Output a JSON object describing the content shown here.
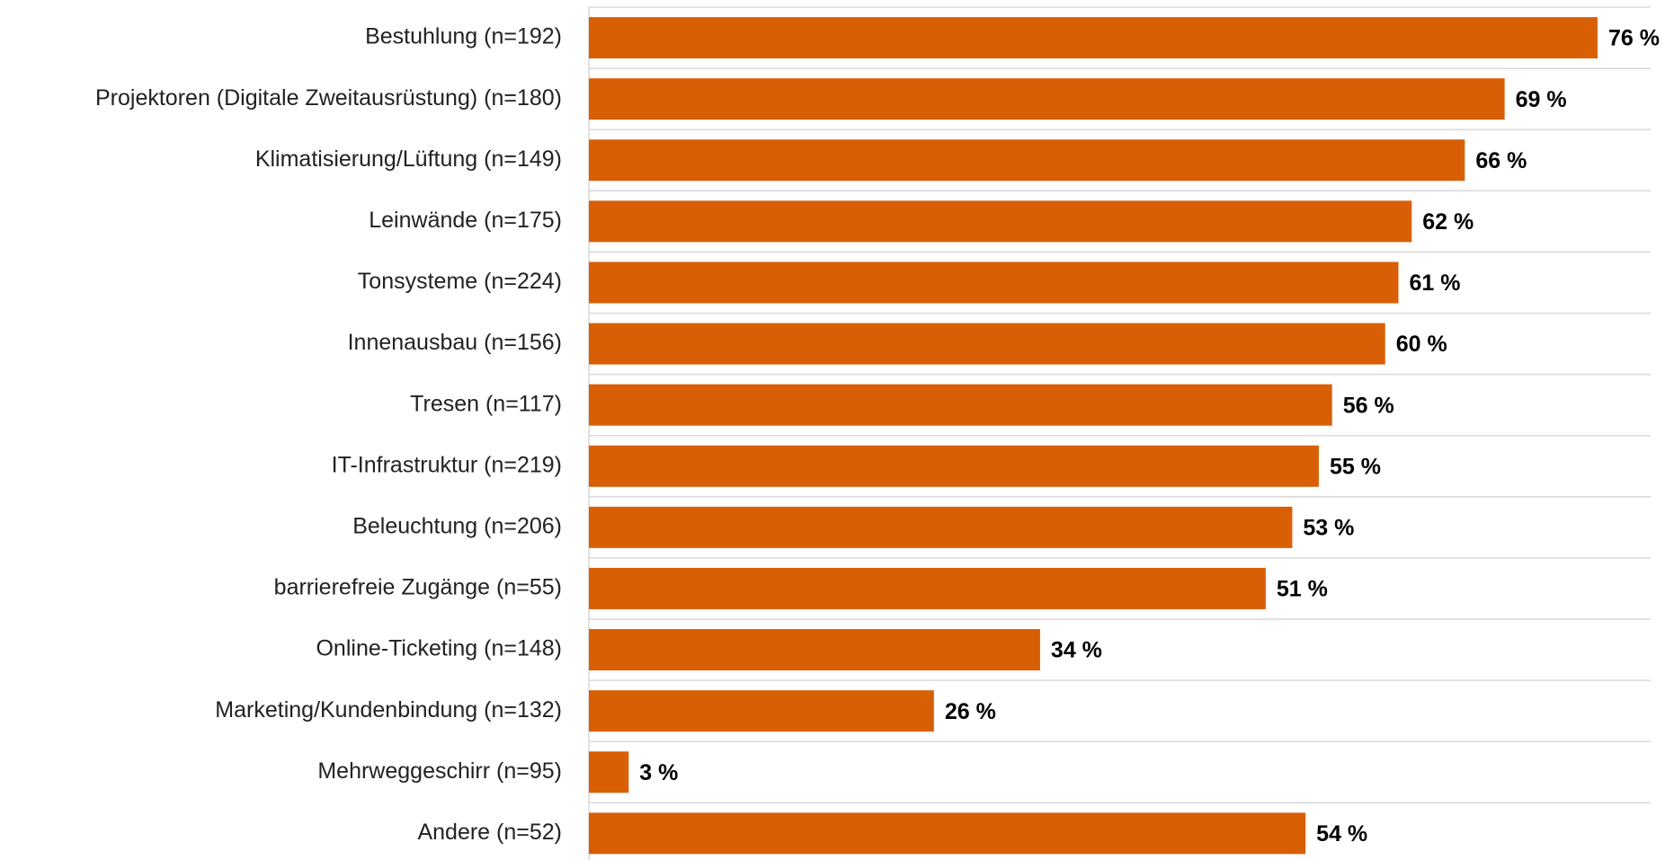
{
  "chart_data": {
    "type": "barh",
    "categories": [
      "Bestuhlung (n=192)",
      "Projektoren (Digitale Zweitausrüstung) (n=180)",
      "Klimatisierung/Lüftung (n=149)",
      "Leinwände (n=175)",
      "Tonsysteme (n=224)",
      "Innenausbau (n=156)",
      "Tresen (n=117)",
      "IT-Infrastruktur (n=219)",
      "Beleuchtung (n=206)",
      "barrierefreie Zugänge (n=55)",
      "Online-Ticketing (n=148)",
      "Marketing/Kundenbindung (n=132)",
      "Mehrweggeschirr (n=95)",
      "Andere (n=52)"
    ],
    "values": [
      76,
      69,
      66,
      62,
      61,
      60,
      56,
      55,
      53,
      51,
      34,
      26,
      3,
      54
    ],
    "value_labels": [
      "76 %",
      "69 %",
      "66 %",
      "62 %",
      "61 %",
      "60 %",
      "56 %",
      "55 %",
      "53 %",
      "51 %",
      "34 %",
      "26 %",
      "3 %",
      "54 %"
    ],
    "color": "#d95f07",
    "xlim": [
      0,
      80
    ],
    "grid": true
  }
}
